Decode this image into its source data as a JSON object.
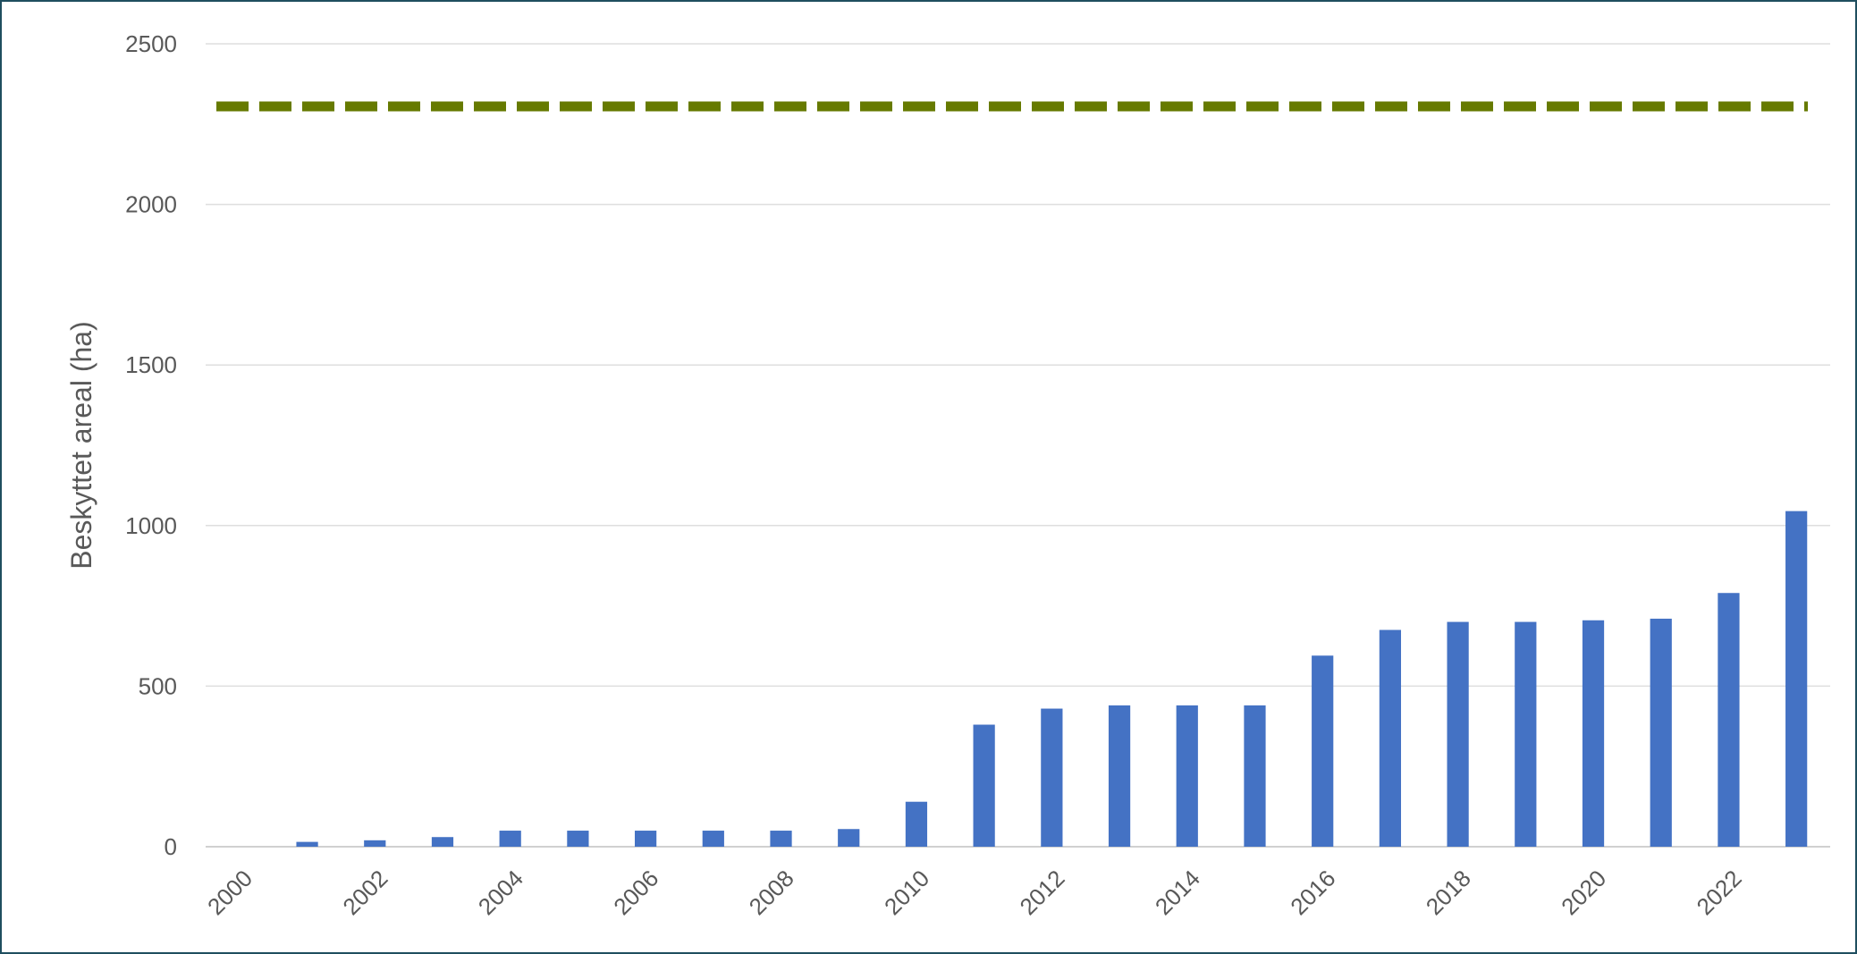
{
  "chart_data": {
    "type": "bar",
    "title": "",
    "xlabel": "",
    "ylabel": "Beskyttet areal (ha)",
    "ylim": [
      0,
      2500
    ],
    "yticks": [
      0,
      500,
      1000,
      1500,
      2000,
      2500
    ],
    "xtick_labels": [
      "2000",
      "2002",
      "2004",
      "2006",
      "2008",
      "2010",
      "2012",
      "2014",
      "2016",
      "2018",
      "2020",
      "2022"
    ],
    "grid": true,
    "categories": [
      "2000",
      "2001",
      "2002",
      "2003",
      "2004",
      "2005",
      "2006",
      "2007",
      "2008",
      "2009",
      "2010",
      "2011",
      "2012",
      "2013",
      "2014",
      "2015",
      "2016",
      "2017",
      "2018",
      "2019",
      "2020",
      "2021",
      "2022",
      "2023"
    ],
    "series": [
      {
        "color": "#4472C4",
        "values": [
          0,
          15,
          20,
          30,
          50,
          50,
          50,
          50,
          50,
          55,
          140,
          380,
          430,
          440,
          440,
          440,
          595,
          675,
          700,
          700,
          705,
          710,
          790,
          1045
        ]
      }
    ],
    "reference_line": {
      "value": 2305,
      "color": "#667A00",
      "style": "dashed"
    }
  }
}
